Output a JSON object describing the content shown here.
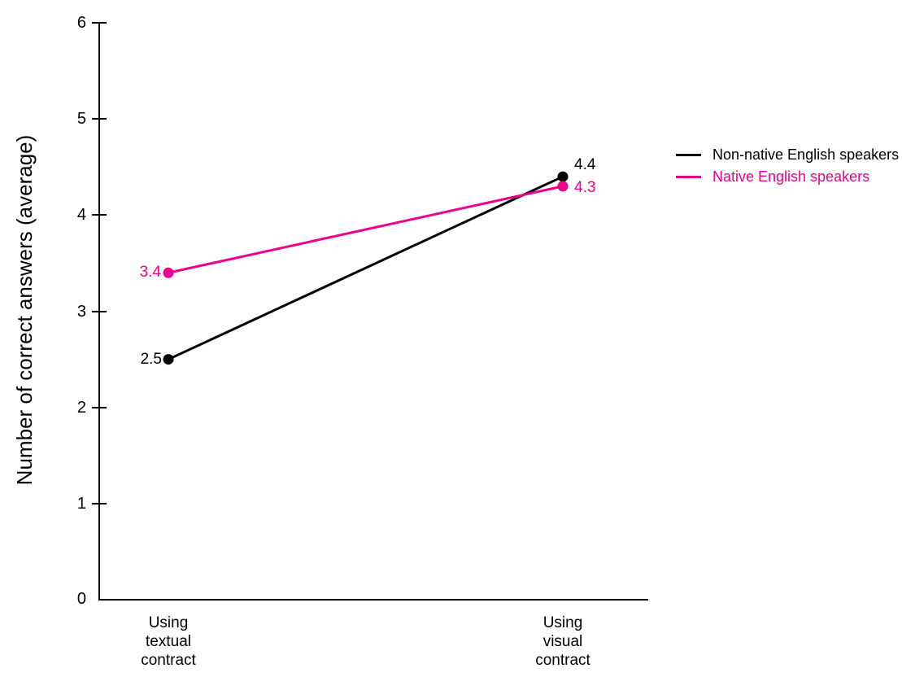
{
  "chart_data": {
    "type": "line",
    "title": "",
    "ylabel": "Number of correct answers (average)",
    "xlabel": "",
    "ylim": [
      0,
      6
    ],
    "yticks": [
      0,
      1,
      2,
      3,
      4,
      5,
      6
    ],
    "grid": false,
    "legend_position": "right-of-plot",
    "categories": [
      "Using\ntextual\ncontract",
      "Using\nvisual\ncontract"
    ],
    "series": [
      {
        "name": "Non-native English speakers",
        "color": "#000000",
        "values": [
          2.5,
          4.4
        ]
      },
      {
        "name": "Native English speakers",
        "color": "#EC008C",
        "values": [
          3.4,
          4.3
        ]
      }
    ]
  }
}
